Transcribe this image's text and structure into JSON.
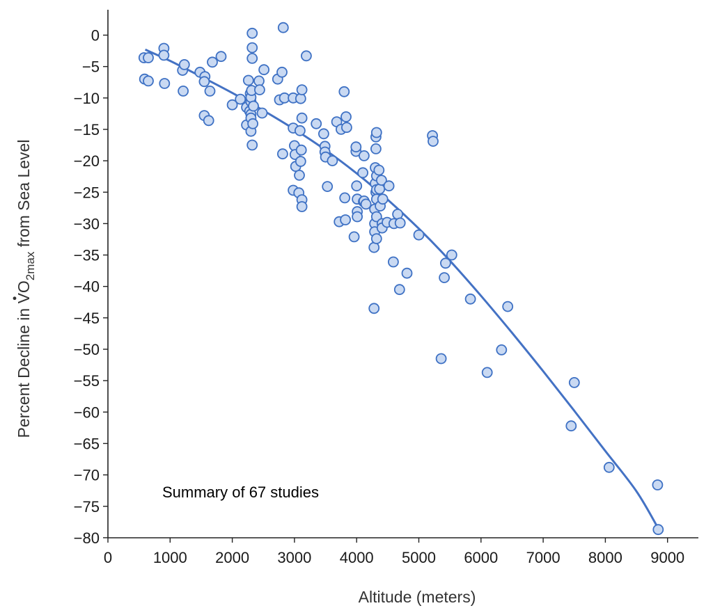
{
  "chart_data": {
    "type": "scatter",
    "title": "",
    "annotation": "Summary of 67 studies",
    "xlabel": "Altitude (meters)",
    "ylabel_prefix": "Percent Decline in ",
    "ylabel_v": "V",
    "ylabel_o": "O",
    "ylabel_sub": "2max",
    "ylabel_suffix": " from Sea Level",
    "xlim": [
      0,
      9500
    ],
    "ylim": [
      -80,
      4
    ],
    "x_ticks": [
      0,
      1000,
      2000,
      3000,
      4000,
      5000,
      6000,
      7000,
      8000,
      9000
    ],
    "x_tick_labels": [
      "0",
      "1000",
      "2000",
      "3000",
      "4000",
      "5000",
      "6000",
      "7000",
      "8000",
      "9000"
    ],
    "y_ticks": [
      0,
      -5,
      -10,
      -15,
      -20,
      -25,
      -30,
      -35,
      -40,
      -45,
      -50,
      -55,
      -60,
      -65,
      -70,
      -75,
      -80
    ],
    "y_tick_labels": [
      "0",
      "−5",
      "−10",
      "−15",
      "−20",
      "−25",
      "−30",
      "−35",
      "−40",
      "−45",
      "−50",
      "−55",
      "−60",
      "−65",
      "−70",
      "−75",
      "−80"
    ],
    "grid": false,
    "colors": {
      "marker_fill": "#c9d9f2",
      "marker_edge": "#3e71c4",
      "trend_line": "#4472c4"
    },
    "series": [
      {
        "type": "scatter",
        "points": [
          [
            580,
            -3.6
          ],
          [
            650,
            -3.6
          ],
          [
            590,
            -7.0
          ],
          [
            650,
            -7.3
          ],
          [
            900,
            -2.1
          ],
          [
            900,
            -3.2
          ],
          [
            910,
            -7.7
          ],
          [
            1200,
            -5.6
          ],
          [
            1230,
            -4.7
          ],
          [
            1210,
            -8.9
          ],
          [
            1480,
            -5.9
          ],
          [
            1560,
            -6.6
          ],
          [
            1550,
            -7.4
          ],
          [
            1550,
            -12.8
          ],
          [
            1620,
            -13.6
          ],
          [
            1640,
            -8.9
          ],
          [
            1680,
            -4.3
          ],
          [
            1820,
            -3.4
          ],
          [
            2000,
            -11.1
          ],
          [
            2130,
            -10.2
          ],
          [
            2230,
            -11.5
          ],
          [
            2230,
            -14.3
          ],
          [
            2260,
            -7.2
          ],
          [
            2280,
            -12.1
          ],
          [
            2290,
            -9.3
          ],
          [
            2300,
            -10.6
          ],
          [
            2300,
            -9.9
          ],
          [
            2300,
            -12.6
          ],
          [
            2300,
            -13.2
          ],
          [
            2300,
            -15.3
          ],
          [
            2310,
            -8.8
          ],
          [
            2320,
            -3.7
          ],
          [
            2320,
            -2.0
          ],
          [
            2320,
            0.3
          ],
          [
            2320,
            -17.5
          ],
          [
            2330,
            -14.1
          ],
          [
            2340,
            -11.3
          ],
          [
            2430,
            -7.3
          ],
          [
            2440,
            -8.7
          ],
          [
            2480,
            -12.4
          ],
          [
            2510,
            -5.5
          ],
          [
            2730,
            -7.0
          ],
          [
            2760,
            -10.3
          ],
          [
            2800,
            -5.9
          ],
          [
            2810,
            -18.9
          ],
          [
            2820,
            1.2
          ],
          [
            2840,
            -10.0
          ],
          [
            2980,
            -10.0
          ],
          [
            2980,
            -14.8
          ],
          [
            2980,
            -24.7
          ],
          [
            3000,
            -17.6
          ],
          [
            3010,
            -19.0
          ],
          [
            3020,
            -20.9
          ],
          [
            3070,
            -25.1
          ],
          [
            3080,
            -22.3
          ],
          [
            3090,
            -15.2
          ],
          [
            3100,
            -10.1
          ],
          [
            3100,
            -20.1
          ],
          [
            3110,
            -18.3
          ],
          [
            3120,
            -8.7
          ],
          [
            3120,
            -13.2
          ],
          [
            3120,
            -26.2
          ],
          [
            3120,
            -27.3
          ],
          [
            3190,
            -3.3
          ],
          [
            3350,
            -14.1
          ],
          [
            3470,
            -15.7
          ],
          [
            3490,
            -17.7
          ],
          [
            3490,
            -18.6
          ],
          [
            3500,
            -19.4
          ],
          [
            3530,
            -24.1
          ],
          [
            3610,
            -20.0
          ],
          [
            3680,
            -13.8
          ],
          [
            3720,
            -29.7
          ],
          [
            3750,
            -15.0
          ],
          [
            3800,
            -9.0
          ],
          [
            3810,
            -25.9
          ],
          [
            3820,
            -29.4
          ],
          [
            3830,
            -13.0
          ],
          [
            3840,
            -14.7
          ],
          [
            3960,
            -32.1
          ],
          [
            3990,
            -18.5
          ],
          [
            3990,
            -17.8
          ],
          [
            4000,
            -24.0
          ],
          [
            4010,
            -26.1
          ],
          [
            4010,
            -28.1
          ],
          [
            4010,
            -28.9
          ],
          [
            4100,
            -21.9
          ],
          [
            4110,
            -26.5
          ],
          [
            4120,
            -19.2
          ],
          [
            4120,
            -26.4
          ],
          [
            4150,
            -26.9
          ],
          [
            4280,
            -43.5
          ],
          [
            4280,
            -33.8
          ],
          [
            4290,
            -30.0
          ],
          [
            4290,
            -27.7
          ],
          [
            4290,
            -31.3
          ],
          [
            4300,
            -23.6
          ],
          [
            4300,
            -21.1
          ],
          [
            4310,
            -18.1
          ],
          [
            4310,
            -16.2
          ],
          [
            4310,
            -25.0
          ],
          [
            4320,
            -15.5
          ],
          [
            4320,
            -22.4
          ],
          [
            4320,
            -24.6
          ],
          [
            4320,
            -26.1
          ],
          [
            4320,
            -28.9
          ],
          [
            4320,
            -32.4
          ],
          [
            4360,
            -21.5
          ],
          [
            4370,
            -24.5
          ],
          [
            4380,
            -27.2
          ],
          [
            4400,
            -23.1
          ],
          [
            4410,
            -30.0
          ],
          [
            4410,
            -30.7
          ],
          [
            4420,
            -26.1
          ],
          [
            4490,
            -29.8
          ],
          [
            4520,
            -24.0
          ],
          [
            4590,
            -36.1
          ],
          [
            4600,
            -30.0
          ],
          [
            4660,
            -28.5
          ],
          [
            4690,
            -40.5
          ],
          [
            4700,
            -29.9
          ],
          [
            4810,
            -37.9
          ],
          [
            5000,
            -31.8
          ],
          [
            5220,
            -16.0
          ],
          [
            5230,
            -16.9
          ],
          [
            5360,
            -51.5
          ],
          [
            5410,
            -38.6
          ],
          [
            5430,
            -36.3
          ],
          [
            5530,
            -35.0
          ],
          [
            5830,
            -42.0
          ],
          [
            6100,
            -53.7
          ],
          [
            6330,
            -50.1
          ],
          [
            6430,
            -43.2
          ],
          [
            7450,
            -62.2
          ],
          [
            7500,
            -55.3
          ],
          [
            8060,
            -68.8
          ],
          [
            8840,
            -71.6
          ],
          [
            8850,
            -78.7
          ]
        ]
      },
      {
        "type": "line",
        "points": [
          [
            600,
            -2.3
          ],
          [
            1000,
            -4.1
          ],
          [
            1500,
            -6.6
          ],
          [
            2000,
            -9.2
          ],
          [
            2500,
            -12.0
          ],
          [
            3000,
            -15.0
          ],
          [
            3500,
            -18.3
          ],
          [
            4000,
            -22.0
          ],
          [
            4500,
            -26.2
          ],
          [
            5000,
            -30.8
          ],
          [
            5500,
            -35.9
          ],
          [
            6000,
            -41.5
          ],
          [
            6500,
            -47.4
          ],
          [
            7000,
            -53.5
          ],
          [
            7500,
            -59.8
          ],
          [
            8000,
            -66.2
          ],
          [
            8500,
            -72.6
          ],
          [
            8850,
            -78.5
          ]
        ]
      }
    ]
  }
}
